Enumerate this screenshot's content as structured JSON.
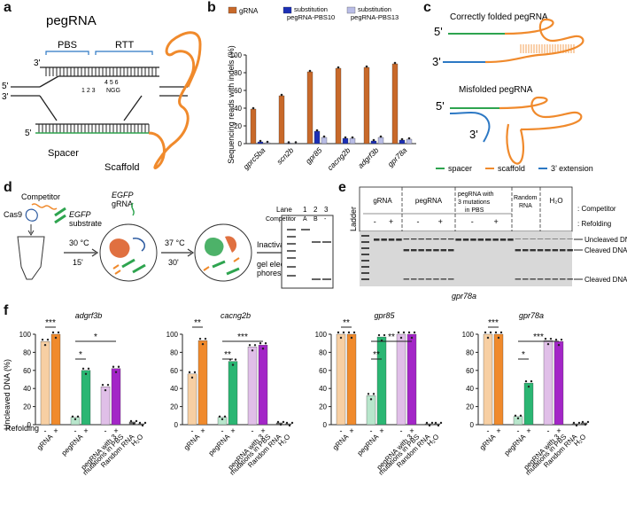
{
  "panels": {
    "a": "a",
    "b": "b",
    "c": "c",
    "d": "d",
    "e": "e",
    "f": "f"
  },
  "panel_a": {
    "title": "pegRNA",
    "pbs": "PBS",
    "rtt": "RTT",
    "three_prime_top": "3'",
    "five_prime_left": "5'",
    "three_prime_left": "3'",
    "five_prime_bottom": "5'",
    "positions_top": "4 5 6",
    "positions_bottom": "1 2 3",
    "ngg": "NGG",
    "spacer": "Spacer",
    "scaffold": "Scaffold",
    "colors": {
      "scaffold": "#f08a2c",
      "spacer": "#2ea44f",
      "ext": "#2c78c4"
    }
  },
  "panel_b": {
    "legend": [
      {
        "name": "gRNA",
        "color": "#c8692a"
      },
      {
        "name": "substitution pegRNA-PBS10",
        "color": "#1c2fb5"
      },
      {
        "name": "substitution pegRNA-PBS13",
        "color": "#b9bde6"
      }
    ]
  },
  "panel_c": {
    "correct_title": "Correctly folded pegRNA",
    "misfold_title": "Misfolded pegRNA",
    "five_a": "5'",
    "three_a": "3'",
    "five_b": "5'",
    "three_b": "3'",
    "legend_spacer": "spacer",
    "legend_scaffold": "scaffold",
    "legend_ext": "3’ extension"
  },
  "panel_d": {
    "competitor": "Competitor",
    "cas9": "Cas9",
    "egfp1": "EGFP",
    "substrate": "substrate",
    "egfp2": "EGFP",
    "grna": "gRNA",
    "temp1": "30 °C",
    "time1": "15'",
    "temp2": "37 °C",
    "time2": "30'",
    "inactivation1": "Inactivation,",
    "inactivation2": "gel electro-",
    "inactivation3": "phoresis",
    "lane_label": "Lane",
    "competitor_label": "Competitor",
    "lanes": [
      "1",
      "2",
      "3"
    ],
    "lane_comp": [
      "A",
      "B",
      "-"
    ]
  },
  "panel_e": {
    "ladder": "Ladder",
    "groups": [
      "gRNA",
      "pegRNA",
      "pegRNA with 3 mutations in PBS",
      "Random RNA",
      "H₂O"
    ],
    "competitor": ": Competitor",
    "refolding": ": Refolding",
    "minus": "-",
    "plus": "+",
    "uncleaved": "Uncleaved DNA",
    "cleaved1": "Cleaved DNA",
    "cleaved2": "Cleaved DNA",
    "gene": "gpr78a"
  },
  "panel_f": {
    "ylabel": "Uncleaved DNA (%)",
    "refolding_label": "Refolding",
    "minus": "-",
    "plus": "+",
    "xlabels": [
      "gRNA",
      "pegRNA",
      "pegRNA with 3 mutations in PBS",
      "Random RNA",
      "H₂O"
    ],
    "yticks": [
      "0",
      "20",
      "40",
      "60",
      "80",
      "100"
    ]
  },
  "chart_data": [
    {
      "type": "bar",
      "title": "",
      "xlabel": "",
      "ylabel": "Sequencing reads with indels (%)",
      "ylim": [
        0,
        100
      ],
      "yticks": [
        "0",
        "20",
        "40",
        "60",
        "80",
        "100"
      ],
      "categories": [
        "gprc5ba",
        "scn2b",
        "gpr85",
        "cacng2b",
        "adgrf3b",
        "gpr78a"
      ],
      "series": [
        {
          "name": "gRNA",
          "color": "#c8692a",
          "values": [
            39,
            54,
            81,
            85,
            86,
            90
          ]
        },
        {
          "name": "substitution pegRNA-PBS10",
          "color": "#1c2fb5",
          "values": [
            2,
            0.5,
            14,
            6,
            3,
            4
          ]
        },
        {
          "name": "substitution pegRNA-PBS13",
          "color": "#b9bde6",
          "values": [
            1,
            0.5,
            7,
            6,
            7,
            5
          ]
        }
      ]
    },
    {
      "type": "bar",
      "title": "adgrf3b",
      "ylabel": "Uncleaved DNA (%)",
      "ylim": [
        0,
        100
      ],
      "bars": [
        92,
        100,
        8,
        60,
        42,
        62,
        3,
        1
      ],
      "colors": [
        "#f7cfa3",
        "#f08a2c",
        "#b8e6cc",
        "#2bb673",
        "#e0bfe8",
        "#a326c7",
        "#666666",
        "#666666"
      ],
      "significance": [
        "***",
        "*",
        "*"
      ]
    },
    {
      "type": "bar",
      "title": "cacng2b",
      "ylabel": "Uncleaved DNA (%)",
      "ylim": [
        0,
        100
      ],
      "bars": [
        56,
        93,
        8,
        70,
        86,
        88,
        2,
        1
      ],
      "colors": [
        "#f7cfa3",
        "#f08a2c",
        "#b8e6cc",
        "#2bb673",
        "#e0bfe8",
        "#a326c7",
        "#666666",
        "#666666"
      ],
      "significance": [
        "**",
        "**",
        "***"
      ]
    },
    {
      "type": "bar",
      "title": "gpr85",
      "ylabel": "Uncleaved DNA (%)",
      "ylim": [
        0,
        100
      ],
      "bars": [
        100,
        100,
        32,
        97,
        100,
        100,
        1,
        1
      ],
      "colors": [
        "#f7cfa3",
        "#f08a2c",
        "#b8e6cc",
        "#2bb673",
        "#e0bfe8",
        "#a326c7",
        "#666666",
        "#666666"
      ],
      "significance": [
        "**",
        "**",
        "**"
      ]
    },
    {
      "type": "bar",
      "title": "gpr78a",
      "ylabel": "Uncleaved DNA (%)",
      "ylim": [
        0,
        100
      ],
      "bars": [
        100,
        100,
        9,
        46,
        93,
        92,
        1,
        2
      ],
      "colors": [
        "#f7cfa3",
        "#f08a2c",
        "#b8e6cc",
        "#2bb673",
        "#e0bfe8",
        "#a326c7",
        "#666666",
        "#666666"
      ],
      "significance": [
        "***",
        "*",
        "***"
      ]
    }
  ]
}
